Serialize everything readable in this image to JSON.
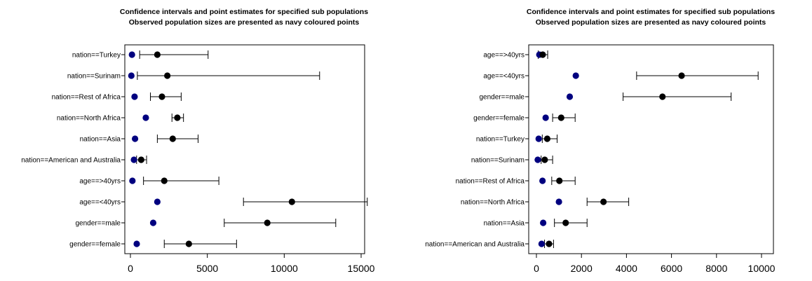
{
  "chart_data": [
    {
      "type": "scatter",
      "title": "Confidence intervals and point estimates for specified sub populations",
      "subtitle": "Observed population sizes are presented as navy coloured points",
      "categories": [
        "nation==Turkey",
        "nation==Surinam",
        "nation==Rest of Africa",
        "nation==North Africa",
        "nation==Asia",
        "nation==American and Australia",
        "age==>40yrs",
        "age==<40yrs",
        "gender==male",
        "gender==female"
      ],
      "observed": [
        100,
        60,
        270,
        1000,
        300,
        230,
        130,
        1750,
        1480,
        410
      ],
      "estimate": [
        1750,
        2400,
        2050,
        3050,
        2750,
        700,
        2200,
        10500,
        8900,
        3800
      ],
      "ci_lower": [
        600,
        450,
        1300,
        2700,
        1750,
        400,
        850,
        7350,
        6100,
        2200
      ],
      "ci_upper": [
        5050,
        12300,
        3300,
        3450,
        4400,
        1050,
        5750,
        15400,
        13350,
        6900
      ],
      "xlim": [
        0,
        16000
      ],
      "xticks": [
        0,
        5000,
        10000,
        15000
      ],
      "colors": {
        "observed": "#00007f",
        "estimate": "#000000"
      }
    },
    {
      "type": "scatter",
      "title": "Confidence intervals and point estimates for specified sub populations",
      "subtitle": "Observed population sizes are presented as navy coloured points",
      "categories": [
        "age==>40yrs",
        "age==<40yrs",
        "gender==male",
        "gender==female",
        "nation==Turkey",
        "nation==Surinam",
        "nation==Rest of Africa",
        "nation==North Africa",
        "nation==Asia",
        "nation==American and Australia"
      ],
      "observed": [
        130,
        1750,
        1480,
        410,
        100,
        60,
        270,
        1000,
        300,
        230
      ],
      "estimate": [
        280,
        6450,
        5600,
        1100,
        480,
        370,
        1020,
        2980,
        1300,
        560
      ],
      "ci_lower": [
        80,
        4450,
        3850,
        720,
        260,
        210,
        680,
        2250,
        800,
        360
      ],
      "ci_upper": [
        500,
        9850,
        8650,
        1720,
        920,
        720,
        1720,
        4100,
        2250,
        760
      ],
      "xlim": [
        0,
        10400
      ],
      "xticks": [
        0,
        2000,
        4000,
        6000,
        8000,
        10000
      ],
      "colors": {
        "observed": "#00007f",
        "estimate": "#000000"
      }
    }
  ]
}
